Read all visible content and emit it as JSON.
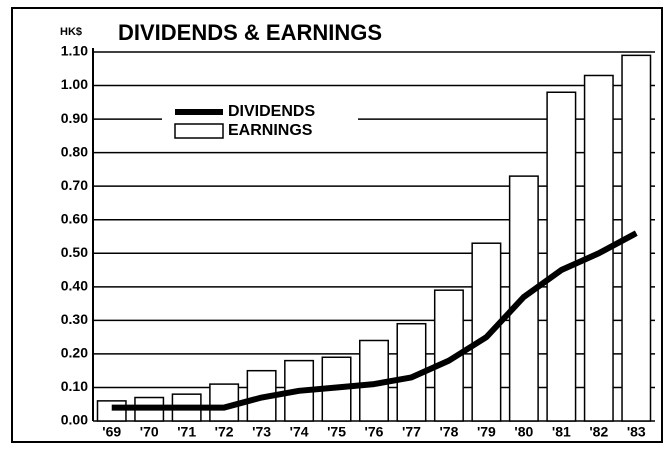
{
  "chart_data": {
    "type": "bar",
    "title": "DIVIDENDS & EARNINGS",
    "y_label": "HK$",
    "categories": [
      "'69",
      "'70",
      "'71",
      "'72",
      "'73",
      "'74",
      "'75",
      "'76",
      "'77",
      "'78",
      "'79",
      "'80",
      "'81",
      "'82",
      "'83"
    ],
    "series": [
      {
        "name": "DIVIDENDS",
        "type": "line",
        "color": "#000000",
        "values": [
          0.04,
          0.04,
          0.04,
          0.04,
          0.07,
          0.09,
          0.1,
          0.11,
          0.13,
          0.18,
          0.25,
          0.37,
          0.45,
          0.5,
          0.56
        ]
      },
      {
        "name": "EARNINGS",
        "type": "bar",
        "color": "#ffffff",
        "values": [
          0.06,
          0.07,
          0.08,
          0.11,
          0.15,
          0.18,
          0.19,
          0.24,
          0.29,
          0.39,
          0.53,
          0.73,
          0.98,
          1.03,
          1.09
        ]
      }
    ],
    "ylim": [
      0,
      1.1
    ],
    "yticks": [
      {
        "value": 0,
        "label": "0.00"
      },
      {
        "value": 0.1,
        "label": "0.10"
      },
      {
        "value": 0.2,
        "label": "0.20"
      },
      {
        "value": 0.3,
        "label": "0.30"
      },
      {
        "value": 0.4,
        "label": "0.40"
      },
      {
        "value": 0.5,
        "label": "0.50"
      },
      {
        "value": 0.6,
        "label": "0.60"
      },
      {
        "value": 0.7,
        "label": "0.70"
      },
      {
        "value": 0.8,
        "label": "0.80"
      },
      {
        "value": 0.9,
        "label": "0.90"
      },
      {
        "value": 1.0,
        "label": "1.00"
      },
      {
        "value": 1.1,
        "label": "1.10"
      }
    ],
    "grid": true,
    "legend": "upper left"
  }
}
